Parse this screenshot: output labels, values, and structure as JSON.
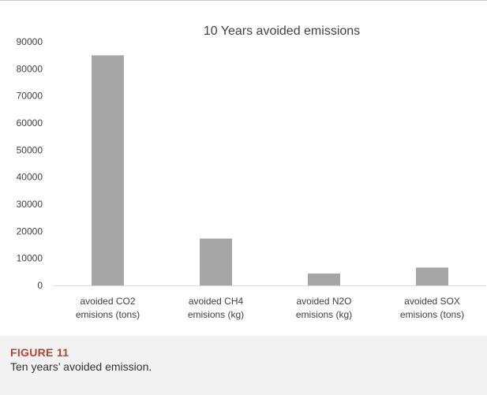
{
  "figure": {
    "label": "FIGURE 11",
    "caption": "Ten years’ avoided emission."
  },
  "chart_data": {
    "type": "bar",
    "title": "10 Years avoided emissions",
    "categories": [
      [
        "avoided CO2",
        "emisions (tons)"
      ],
      [
        "avoided CH4",
        "emisions (kg)"
      ],
      [
        "avoided N2O",
        "emisions (kg)"
      ],
      [
        "avoided SOX",
        "emisions (tons)"
      ]
    ],
    "values": [
      85000,
      17300,
      4400,
      6600
    ],
    "ylim": [
      0,
      90000
    ],
    "yticks": [
      0,
      10000,
      20000,
      30000,
      40000,
      50000,
      60000,
      70000,
      80000,
      90000
    ],
    "grid": false,
    "legend": "none",
    "bar_color": "#a6a6a6",
    "axis_color": "#d9d9d9",
    "text_color": "#404040"
  }
}
